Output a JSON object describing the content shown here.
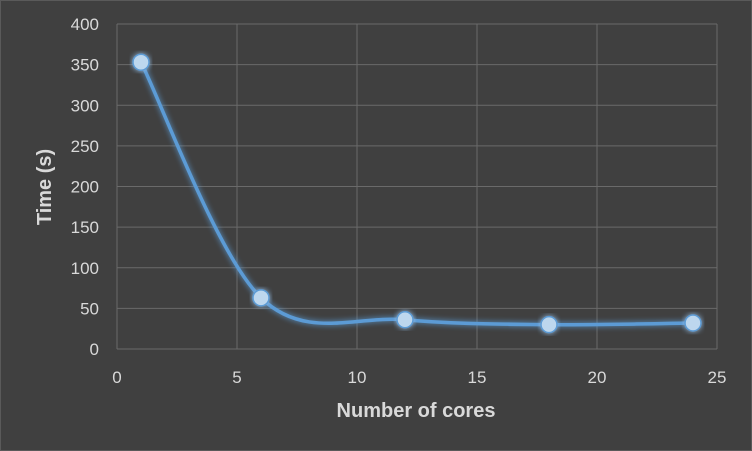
{
  "chart_data": {
    "type": "scatter",
    "smooth": true,
    "xlabel": "Number of cores",
    "ylabel": "Time (s)",
    "xlim": [
      0,
      25
    ],
    "ylim": [
      0,
      400
    ],
    "xticks": [
      0,
      5,
      10,
      15,
      20,
      25
    ],
    "yticks": [
      0,
      50,
      100,
      150,
      200,
      250,
      300,
      350,
      400
    ],
    "grid": true,
    "series": [
      {
        "x": [
          1,
          6,
          12,
          18,
          24
        ],
        "y": [
          353,
          63,
          36,
          30,
          32
        ],
        "color": "#5b9bd5",
        "marker_color": "#bdd7ee"
      }
    ],
    "background": "#404040"
  }
}
